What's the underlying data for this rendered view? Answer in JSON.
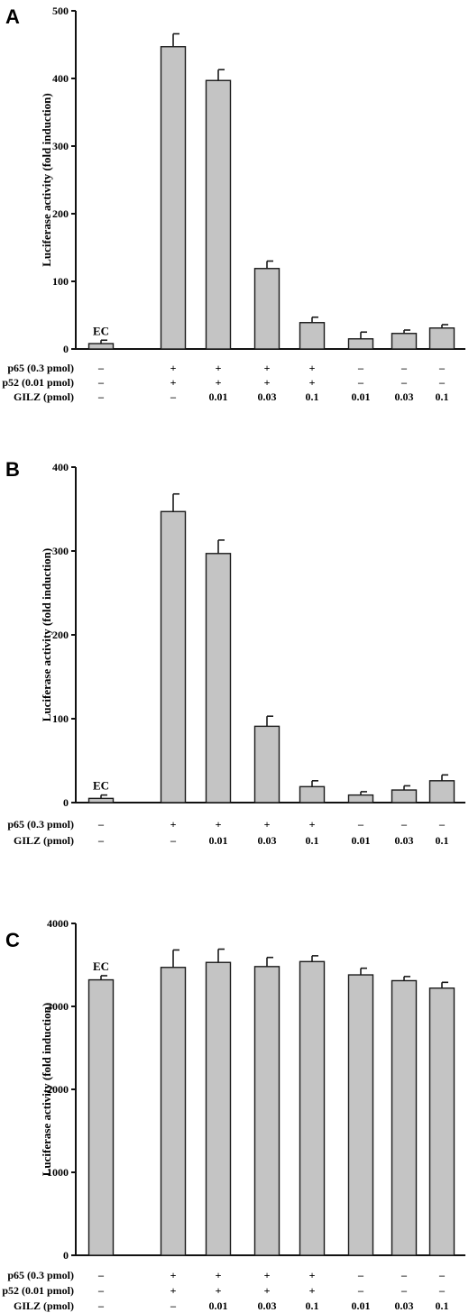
{
  "chart_data": [
    {
      "panel": "A",
      "type": "bar",
      "ylabel": "Luciferase activity (fold induction)",
      "ylim": [
        0,
        500
      ],
      "yticks": [
        "0",
        "100",
        "200",
        "300",
        "400",
        "500"
      ],
      "values": [
        8,
        447,
        397,
        119,
        39,
        15,
        23,
        31
      ],
      "errors": [
        5,
        19,
        16,
        11,
        8,
        10,
        5,
        5
      ],
      "bar_annotation": {
        "index": 0,
        "text": "EC"
      },
      "conditions": [
        {
          "label": "p65 (0.3 pmol)",
          "values": [
            "–",
            "+",
            "+",
            "+",
            "+",
            "–",
            "–",
            "–"
          ]
        },
        {
          "label": "p52 (0.01 pmol)",
          "values": [
            "–",
            "+",
            "+",
            "+",
            "+",
            "–",
            "–",
            "–"
          ]
        },
        {
          "label": "GILZ (pmol)",
          "values": [
            "–",
            "–",
            "0.01",
            "0.03",
            "0.1",
            "0.01",
            "0.03",
            "0.1"
          ]
        }
      ]
    },
    {
      "panel": "B",
      "type": "bar",
      "ylabel": "Luciferase activity (fold induction)",
      "ylim": [
        0,
        400
      ],
      "yticks": [
        "0",
        "100",
        "200",
        "300",
        "400"
      ],
      "values": [
        5,
        347,
        297,
        91,
        19,
        9,
        15,
        26
      ],
      "errors": [
        4,
        21,
        16,
        12,
        7,
        4,
        5,
        7
      ],
      "bar_annotation": {
        "index": 0,
        "text": "EC"
      },
      "conditions": [
        {
          "label": "p65 (0.3 pmol)",
          "values": [
            "–",
            "+",
            "+",
            "+",
            "+",
            "–",
            "–",
            "–"
          ]
        },
        {
          "label": "GILZ (pmol)",
          "values": [
            "–",
            "–",
            "0.01",
            "0.03",
            "0.1",
            "0.01",
            "0.03",
            "0.1"
          ]
        }
      ]
    },
    {
      "panel": "C",
      "type": "bar",
      "ylabel": "Luciferase activity (fold induction)",
      "ylim": [
        0,
        4000
      ],
      "yticks": [
        "0",
        "1000",
        "2000",
        "3000",
        "4000"
      ],
      "values": [
        3320,
        3470,
        3530,
        3480,
        3540,
        3380,
        3310,
        3220
      ],
      "errors": [
        50,
        210,
        160,
        110,
        70,
        80,
        50,
        70
      ],
      "bar_annotation": {
        "index": 0,
        "text": "EC"
      },
      "conditions": [
        {
          "label": "p65 (0.3 pmol)",
          "values": [
            "–",
            "+",
            "+",
            "+",
            "+",
            "–",
            "–",
            "–"
          ]
        },
        {
          "label": "p52 (0.01 pmol)",
          "values": [
            "–",
            "+",
            "+",
            "+",
            "+",
            "–",
            "–",
            "–"
          ]
        },
        {
          "label": "GILZ (pmol)",
          "values": [
            "–",
            "–",
            "0.01",
            "0.03",
            "0.1",
            "0.01",
            "0.03",
            "0.1"
          ]
        }
      ]
    }
  ],
  "colors": {
    "bar_fill": "#c4c4c4",
    "bar_stroke": "#1a1a1a",
    "axis": "#111111"
  }
}
